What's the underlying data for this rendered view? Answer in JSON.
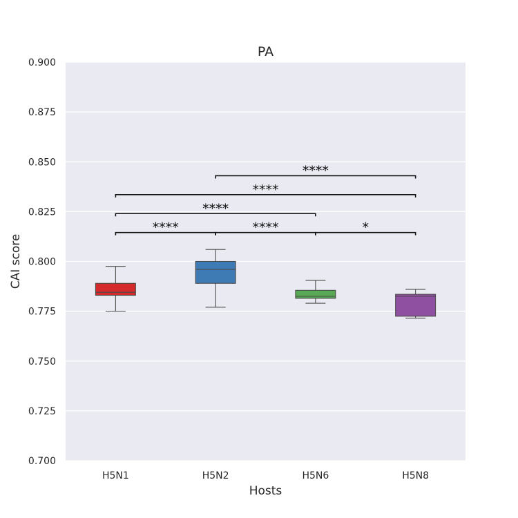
{
  "chart_data": {
    "type": "box",
    "title": "PA",
    "xlabel": "Hosts",
    "ylabel": "CAI score",
    "ylim": [
      0.7,
      0.9
    ],
    "yticks": [
      0.7,
      0.725,
      0.75,
      0.775,
      0.8,
      0.825,
      0.85,
      0.875,
      0.9
    ],
    "ytick_labels": [
      "0.700",
      "0.725",
      "0.750",
      "0.775",
      "0.800",
      "0.825",
      "0.850",
      "0.875",
      "0.900"
    ],
    "grid": true,
    "background": "#eaeaf2",
    "categories": [
      "H5N1",
      "H5N2",
      "H5N6",
      "H5N8"
    ],
    "boxes": [
      {
        "category": "H5N1",
        "whisker_low": 0.775,
        "q1": 0.783,
        "median": 0.7845,
        "q3": 0.789,
        "whisker_high": 0.7975,
        "color": "#d42a2b"
      },
      {
        "category": "H5N2",
        "whisker_low": 0.777,
        "q1": 0.789,
        "median": 0.796,
        "q3": 0.8,
        "whisker_high": 0.806,
        "color": "#3e7bb4"
      },
      {
        "category": "H5N6",
        "whisker_low": 0.779,
        "q1": 0.7815,
        "median": 0.7825,
        "q3": 0.7855,
        "whisker_high": 0.7905,
        "color": "#58aa54"
      },
      {
        "category": "H5N8",
        "whisker_low": 0.7715,
        "q1": 0.7725,
        "median": 0.7825,
        "q3": 0.7835,
        "whisker_high": 0.786,
        "color": "#9050a2"
      }
    ],
    "significance": [
      {
        "from": "H5N1",
        "to": "H5N2",
        "y": 0.8145,
        "label": "****"
      },
      {
        "from": "H5N2",
        "to": "H5N6",
        "y": 0.8145,
        "label": "****"
      },
      {
        "from": "H5N6",
        "to": "H5N8",
        "y": 0.8145,
        "label": "*"
      },
      {
        "from": "H5N1",
        "to": "H5N6",
        "y": 0.824,
        "label": "****"
      },
      {
        "from": "H5N1",
        "to": "H5N8",
        "y": 0.8335,
        "label": "****"
      },
      {
        "from": "H5N2",
        "to": "H5N8",
        "y": 0.843,
        "label": "****"
      }
    ]
  }
}
